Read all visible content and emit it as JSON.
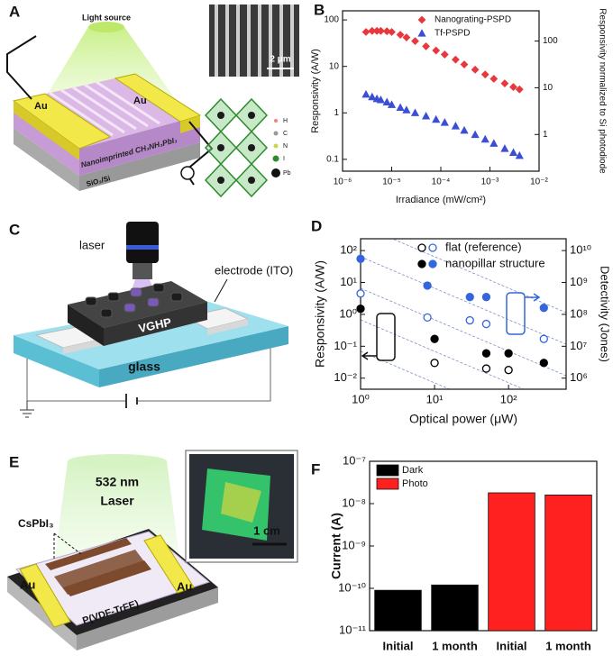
{
  "panel_labels": [
    "A",
    "B",
    "C",
    "D",
    "E",
    "F"
  ],
  "diagram_a": {
    "light_source": "Light source",
    "electrodes": [
      "Au",
      "Au"
    ],
    "film": "Nanoimprinted CH₃NH₃PbI₃",
    "substrate": "SiO₂/Si",
    "scale_bar": "2 μm",
    "atoms": [
      "H",
      "C",
      "N",
      "I",
      "Pb"
    ]
  },
  "diagram_c": {
    "laser": "laser",
    "electrode": "electrode (ITO)",
    "material": "VGHP",
    "substrate": "glass"
  },
  "diagram_e": {
    "laser_wavelength": "532 nm",
    "laser": "Laser",
    "material": "CsPbI₃",
    "electrodes": [
      "Au",
      "Au"
    ],
    "dielectric": "P(VDF-TrFE)",
    "scale_bar": "1 cm"
  },
  "chart_data": [
    {
      "type": "scatter",
      "x_label": "Irradiance (mW/cm²)",
      "y_label": "Responsivity (A/W)",
      "y2_label": "Responsivity normalized to Si photodiode",
      "xscale": "log",
      "yscale": "log",
      "xlim": [
        1e-06,
        0.01
      ],
      "xticks": [
        {
          "value": 1e-06,
          "label": "10⁻⁶"
        },
        {
          "value": 1e-05,
          "label": "10⁻⁵"
        },
        {
          "value": 0.0001,
          "label": "10⁻⁴"
        },
        {
          "value": 0.001,
          "label": "10⁻³"
        },
        {
          "value": 0.01,
          "label": "10⁻²"
        }
      ],
      "ylim": [
        0.0556,
        157
      ],
      "yticks": [
        0.1,
        1,
        10,
        100
      ],
      "y2lim": [
        0.164,
        444
      ],
      "y2ticks": [
        1,
        10,
        100
      ],
      "legend": "upper right",
      "series": [
        {
          "name": "Nanograting-PSPD",
          "color": "#e8383d",
          "marker": "diamond",
          "x": [
            3e-06,
            4e-06,
            5e-06,
            6e-06,
            8e-06,
            1e-05,
            1.5e-05,
            2e-05,
            3e-05,
            5e-05,
            8e-05,
            0.00012,
            0.0002,
            0.0003,
            0.0005,
            0.0008,
            0.0012,
            0.002,
            0.003,
            0.004
          ],
          "values": [
            55,
            58,
            58,
            58,
            57,
            55,
            48,
            42,
            35,
            27,
            22,
            18,
            14,
            11,
            8.5,
            6.7,
            5.4,
            4.3,
            3.6,
            3.2
          ]
        },
        {
          "name": "Tf-PSPD",
          "color": "#3a4fd6",
          "marker": "triangle",
          "x": [
            3e-06,
            4e-06,
            5e-06,
            6e-06,
            8e-06,
            1e-05,
            1.5e-05,
            2e-05,
            3e-05,
            5e-05,
            8e-05,
            0.00012,
            0.0002,
            0.0003,
            0.0005,
            0.0008,
            0.0012,
            0.002,
            0.003,
            0.004
          ],
          "values": [
            2.5,
            2.2,
            2.0,
            1.9,
            1.7,
            1.5,
            1.3,
            1.15,
            1.0,
            0.85,
            0.72,
            0.62,
            0.52,
            0.42,
            0.34,
            0.27,
            0.22,
            0.17,
            0.14,
            0.12
          ]
        }
      ]
    },
    {
      "type": "scatter",
      "x_label": "Optical power (μW)",
      "y_label": "Responsivity (A/W)",
      "y2_label": "Detectivity (Jones)",
      "xscale": "log",
      "yscale": "log",
      "xlim": [
        1,
        600
      ],
      "xticks": [
        {
          "value": 1,
          "label": "10⁰"
        },
        {
          "value": 10,
          "label": "10¹"
        },
        {
          "value": 100,
          "label": "10²"
        }
      ],
      "ylim": [
        0.0045,
        235
      ],
      "yticks": [
        {
          "value": 0.01,
          "label": "10⁻²"
        },
        {
          "value": 0.1,
          "label": "10⁻¹"
        },
        {
          "value": 1,
          "label": "10⁰"
        },
        {
          "value": 10,
          "label": "10¹"
        },
        {
          "value": 100,
          "label": "10²"
        }
      ],
      "y2lim": [
        450000,
        23500000000
      ],
      "y2ticks": [
        {
          "value": 1000000,
          "label": "10⁶"
        },
        {
          "value": 10000000,
          "label": "10⁷"
        },
        {
          "value": 100000000,
          "label": "10⁸"
        },
        {
          "value": 1000000000,
          "label": "10⁹"
        },
        {
          "value": 10000000000,
          "label": "10¹⁰"
        }
      ],
      "legend": "upper right",
      "series": [
        {
          "name": "flat (reference)",
          "color": "#000000",
          "marker": "circle",
          "fill": "open",
          "x": [
            10,
            50,
            100
          ],
          "values": [
            0.03,
            0.02,
            0.018
          ]
        },
        {
          "color": "#3366dd",
          "marker": "circle",
          "fill": "open",
          "axis": "y2",
          "x": [
            1,
            8,
            30,
            50,
            300
          ],
          "values": [
            450000000,
            80000000,
            65000000,
            50000000,
            17000000
          ]
        },
        {
          "name": "nanopillar structure",
          "color": "#000000",
          "marker": "circle",
          "fill": "filled",
          "x": [
            1,
            10,
            50,
            100,
            300
          ],
          "values": [
            1.5,
            0.17,
            0.06,
            0.06,
            0.03
          ]
        },
        {
          "color": "#3366dd",
          "marker": "circle",
          "fill": "filled",
          "axis": "y2",
          "x": [
            1,
            8,
            30,
            50,
            300
          ],
          "values": [
            5500000000,
            800000000,
            350000000,
            350000000,
            160000000
          ]
        }
      ]
    },
    {
      "type": "bar",
      "y_label": "Current (A)",
      "yscale": "log",
      "ylim": [
        1e-11,
        1e-07
      ],
      "yticks": [
        {
          "value": 1e-11,
          "label": "10⁻¹¹"
        },
        {
          "value": 1e-10,
          "label": "10⁻¹⁰"
        },
        {
          "value": 1e-09,
          "label": "10⁻⁹"
        },
        {
          "value": 1e-08,
          "label": "10⁻⁸"
        },
        {
          "value": 1e-07,
          "label": "10⁻⁷"
        }
      ],
      "categories": [
        "Initial",
        "1 month",
        "Initial",
        "1 month"
      ],
      "legend": "upper left",
      "series": [
        {
          "name": "Dark",
          "color": "#000000",
          "values": [
            9e-11,
            1.2e-10,
            null,
            null
          ]
        },
        {
          "name": "Photo",
          "color": "#ff2020",
          "values": [
            null,
            null,
            1.8e-08,
            1.6e-08
          ]
        }
      ]
    }
  ]
}
